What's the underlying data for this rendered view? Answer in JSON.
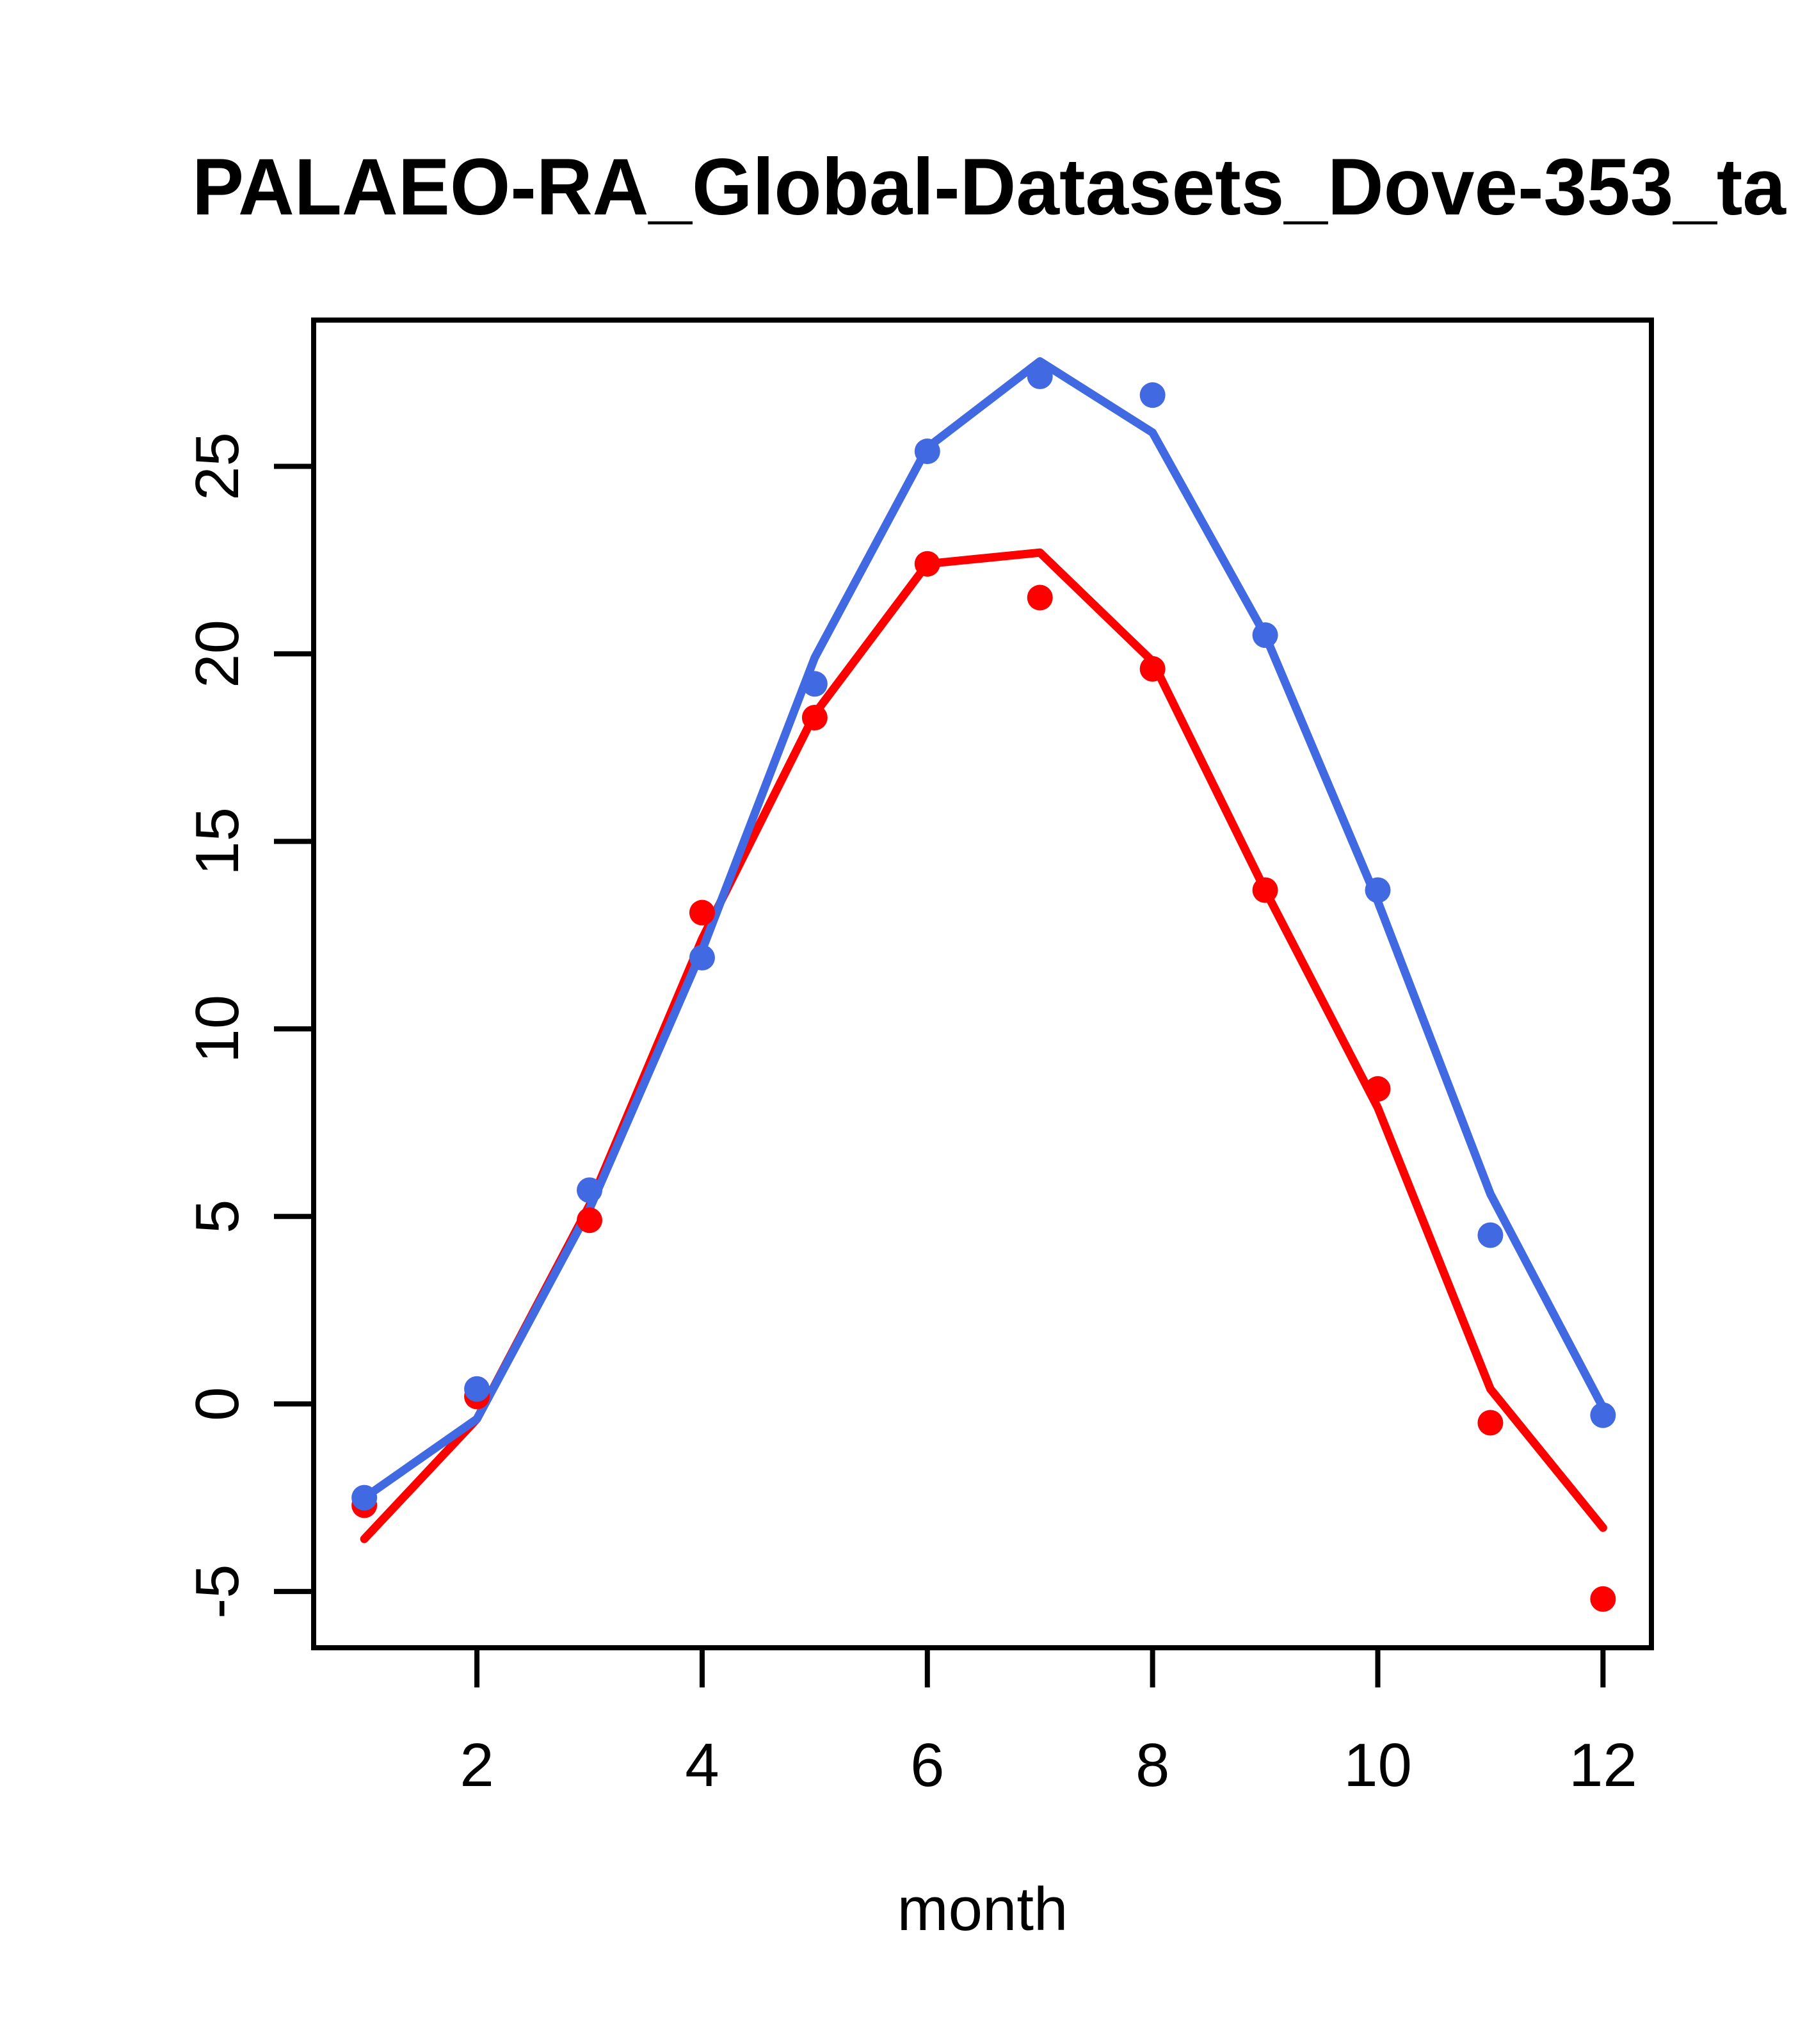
{
  "chart_data": {
    "type": "line",
    "title": "PALAEO-RA_Global-Datasets_Dove-353_ta",
    "xlabel": "month",
    "ylabel": "",
    "x": [
      1,
      2,
      3,
      4,
      5,
      6,
      7,
      8,
      9,
      10,
      11,
      12
    ],
    "xticks": [
      2,
      4,
      6,
      8,
      10,
      12
    ],
    "yticks": [
      -5,
      0,
      5,
      10,
      15,
      20,
      25
    ],
    "xlim": [
      0.55,
      12.43
    ],
    "ylim": [
      -6.5,
      28.9
    ],
    "grid": false,
    "legend": "none",
    "colors": {
      "blue": "#4169E1",
      "red": "#FF0000",
      "axis": "#000000"
    },
    "series": [
      {
        "name": "red-line",
        "kind": "line",
        "color": "#FF0000",
        "values": [
          -3.6,
          -0.4,
          5.3,
          12.4,
          18.4,
          22.4,
          22.7,
          19.8,
          13.7,
          7.9,
          0.4,
          -3.3
        ]
      },
      {
        "name": "blue-line",
        "kind": "line",
        "color": "#4169E1",
        "values": [
          -2.5,
          -0.4,
          5.2,
          12.1,
          19.9,
          25.5,
          27.8,
          25.9,
          20.5,
          13.4,
          5.6,
          -0.1
        ]
      },
      {
        "name": "red-points",
        "kind": "points",
        "color": "#FF0000",
        "values": [
          -2.7,
          0.2,
          4.9,
          13.1,
          18.3,
          22.4,
          21.5,
          19.6,
          13.7,
          8.4,
          -0.5,
          -5.2
        ]
      },
      {
        "name": "blue-points",
        "kind": "points",
        "color": "#4169E1",
        "values": [
          -2.5,
          0.4,
          5.7,
          11.9,
          19.2,
          25.4,
          27.4,
          26.9,
          20.5,
          13.7,
          4.5,
          -0.3
        ]
      }
    ]
  }
}
